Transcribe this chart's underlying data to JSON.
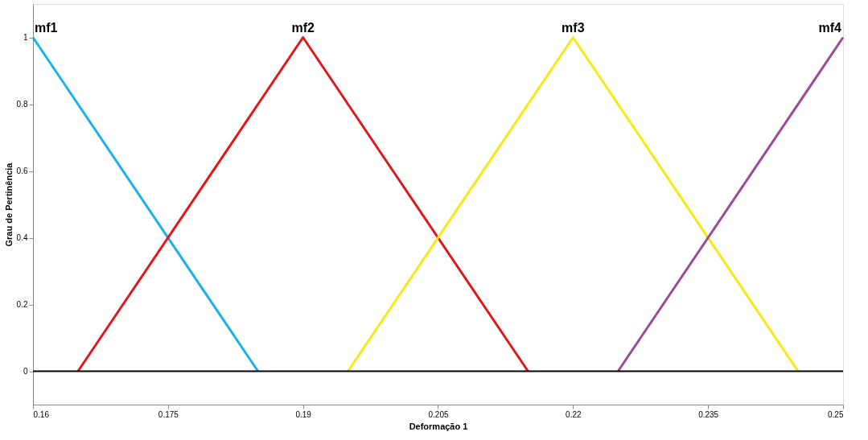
{
  "chart_data": {
    "type": "line",
    "xlabel": "Deformação 1",
    "ylabel": "Grau de Pertinência",
    "xlim": [
      0.16,
      0.25
    ],
    "xticks": [
      0.16,
      0.175,
      0.19,
      0.205,
      0.22,
      0.235,
      0.25
    ],
    "ylim": [
      -0.1,
      1.1
    ],
    "yticks": [
      0,
      0.2,
      0.4,
      0.6,
      0.8,
      1
    ],
    "series": [
      {
        "color": "#1ab0e8",
        "x": [
          0.16,
          0.185
        ],
        "values": [
          1,
          0
        ]
      },
      {
        "color": "#e3151a",
        "x": [
          0.165,
          0.19,
          0.215
        ],
        "values": [
          0,
          1,
          0
        ]
      },
      {
        "color": "#f5e90f",
        "x": [
          0.195,
          0.22,
          0.245
        ],
        "values": [
          0,
          1,
          0
        ]
      },
      {
        "color": "#9b4a96",
        "x": [
          0.225,
          0.25
        ],
        "values": [
          0,
          1
        ]
      }
    ],
    "ref_lines": [
      {
        "axis": "y",
        "value": 0,
        "color": "#000000"
      }
    ],
    "annotations": [
      {
        "text": "mf1",
        "x": 0.16,
        "y": 1
      },
      {
        "text": "mf2",
        "x": 0.19,
        "y": 1
      },
      {
        "text": "mf3",
        "x": 0.22,
        "y": 1
      },
      {
        "text": "mf4",
        "x": 0.25,
        "y": 1
      }
    ],
    "grid": false,
    "marker": "none",
    "line_style": "solid"
  }
}
